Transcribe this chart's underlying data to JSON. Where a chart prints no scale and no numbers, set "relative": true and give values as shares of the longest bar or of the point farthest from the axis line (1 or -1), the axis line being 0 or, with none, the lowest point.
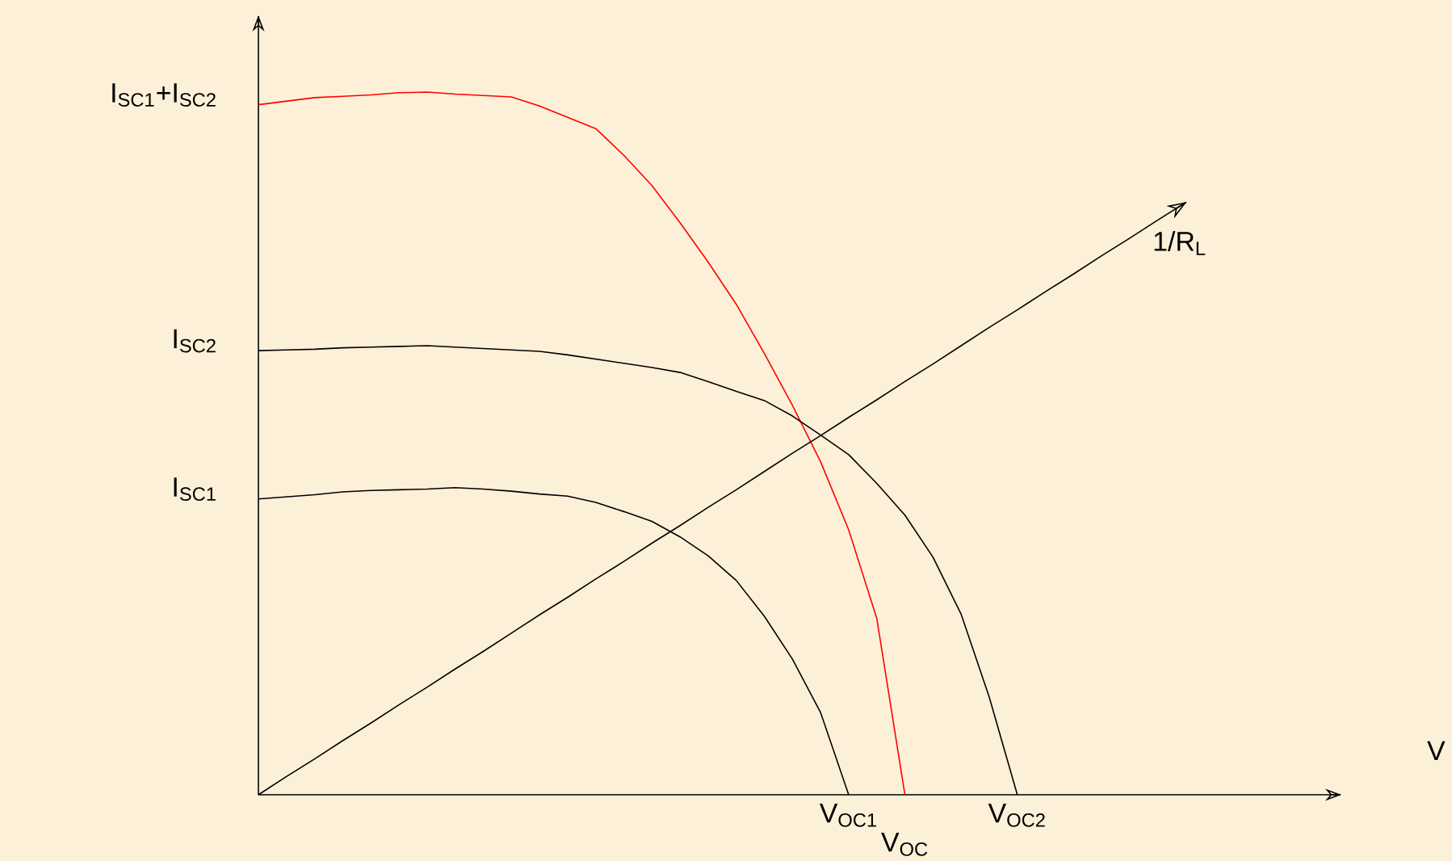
{
  "chart_data": {
    "type": "line",
    "relative": true,
    "xlabel": "V",
    "marker": "none",
    "categories": [
      null,
      null,
      null,
      null,
      null,
      null,
      null,
      null,
      null,
      null,
      null,
      null,
      null,
      null,
      null,
      null,
      null,
      null,
      null,
      null,
      null,
      "V$_{OC1}$",
      null,
      "V$_{OC}$",
      null,
      null,
      null,
      "V$_{OC2}$",
      null,
      null,
      null,
      null,
      null,
      null,
      null,
      null,
      null,
      null,
      null
    ],
    "series": [
      {
        "color": "#ff0000",
        "values": [
          0.982,
          0.987,
          0.992,
          0.994,
          0.996,
          0.999,
          1.0,
          0.997,
          0.995,
          0.993,
          0.98,
          0.964,
          0.948,
          0.91,
          0.867,
          0.814,
          0.758,
          0.698,
          0.628,
          0.554,
          0.474,
          0.377,
          0.251,
          0,
          null,
          null,
          null,
          null,
          null,
          null,
          null,
          null,
          null,
          null,
          null,
          null,
          null,
          null,
          null
        ]
      },
      {
        "color": "#000000",
        "values": [
          0.632,
          0.633,
          0.634,
          0.636,
          0.637,
          0.638,
          0.639,
          0.637,
          0.635,
          0.633,
          0.631,
          0.626,
          0.62,
          0.614,
          0.608,
          0.601,
          0.588,
          0.574,
          0.561,
          0.539,
          0.512,
          0.484,
          0.443,
          0.398,
          0.338,
          0.257,
          0.139,
          0,
          null,
          null,
          null,
          null,
          null,
          null,
          null,
          null,
          null,
          null,
          null
        ]
      },
      {
        "color": "#000000",
        "values": [
          0.421,
          0.424,
          0.427,
          0.431,
          0.433,
          0.434,
          0.435,
          0.437,
          0.435,
          0.432,
          0.428,
          0.425,
          0.416,
          0.403,
          0.389,
          0.367,
          0.34,
          0.305,
          0.254,
          0.193,
          0.117,
          0,
          null,
          null,
          null,
          null,
          null,
          null,
          null,
          null,
          null,
          null,
          null,
          null,
          null,
          null,
          null,
          null,
          null
        ]
      },
      {
        "name": "1/R$_{L}$",
        "color": "#000000",
        "values": [
          0,
          0.026,
          0.051,
          0.077,
          0.102,
          0.128,
          0.153,
          0.179,
          0.204,
          0.23,
          0.256,
          0.281,
          0.307,
          0.332,
          0.358,
          0.383,
          0.409,
          0.434,
          0.46,
          0.486,
          0.511,
          0.537,
          0.562,
          0.588,
          0.613,
          0.639,
          0.665,
          0.69,
          0.716,
          0.741,
          0.767,
          0.792,
          0.818,
          0.843,
          null,
          null,
          null,
          null,
          null
        ]
      }
    ],
    "annotations": [
      "I$_{SC1}$+I$_{SC2}$",
      "I$_{SC2}$",
      "I$_{SC1}$"
    ]
  }
}
